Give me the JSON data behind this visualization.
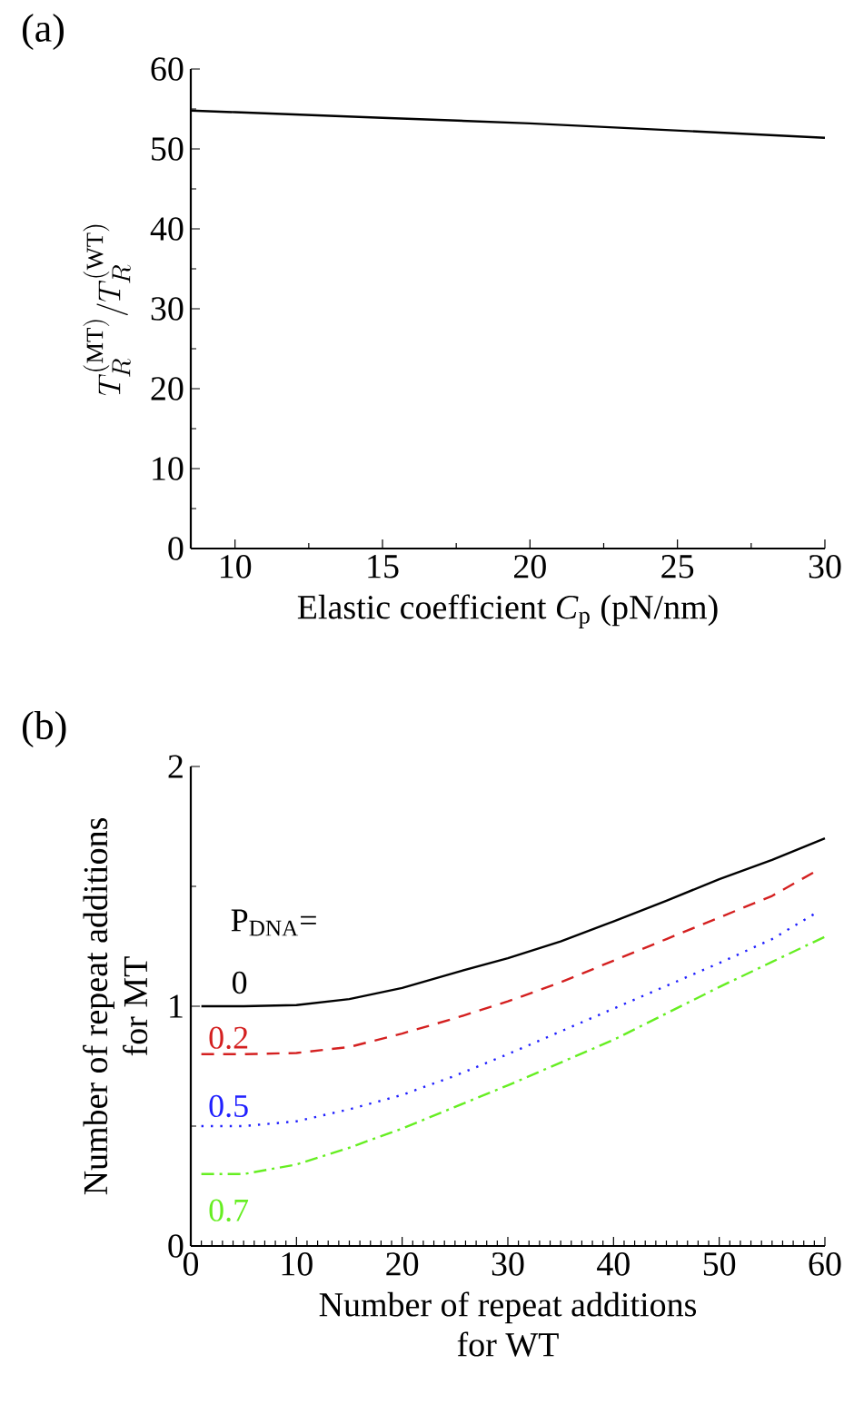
{
  "chart_data": [
    {
      "type": "line",
      "title": "(a)",
      "xlabel": "Elastic coefficient *C*$_{p}$ (pN/nm)",
      "ylabel": "T_R^{(\\mathrm{MT})}/T_R^{(\\mathrm{WT})}",
      "x": [
        8.5,
        10,
        15,
        20,
        25,
        30
      ],
      "series": [
        {
          "color": "#000000",
          "values": [
            54.8,
            54.6,
            53.9,
            53.2,
            52.3,
            51.4
          ]
        }
      ],
      "xlim": [
        8.5,
        30
      ],
      "xticks": [
        10,
        15,
        20,
        25,
        30
      ],
      "ylim": [
        0,
        60
      ],
      "yticks": [
        0,
        10,
        20,
        30,
        40,
        50,
        60
      ],
      "line_style": "solid"
    },
    {
      "type": "line",
      "title": "(b)",
      "xlabel": "Number of repeat additions\nfor WT",
      "ylabel": "Number of repeat additions\nfor MT",
      "legend_title": "P$_{DNA}$=",
      "x": [
        1,
        5,
        10,
        15,
        20,
        25,
        30,
        35,
        40,
        45,
        50,
        55,
        60
      ],
      "series": [
        {
          "name": "0",
          "color": "#000000",
          "line_style": "solid",
          "values": [
            1.0,
            1.0,
            1.005,
            1.03,
            1.076,
            1.14,
            1.2,
            1.27,
            1.354,
            1.44,
            1.53,
            1.61,
            1.7
          ]
        },
        {
          "name": "0.2",
          "color": "#d42020",
          "line_style": "dashed",
          "x": [
            1,
            5,
            10,
            15,
            20,
            25,
            30,
            35,
            40,
            45,
            50,
            55,
            59
          ],
          "values": [
            0.8,
            0.8,
            0.805,
            0.83,
            0.886,
            0.95,
            1.02,
            1.1,
            1.19,
            1.28,
            1.37,
            1.46,
            1.56
          ]
        },
        {
          "name": "0.5",
          "color": "#2020ff",
          "line_style": "dotted",
          "x": [
            1,
            5,
            10,
            15,
            20,
            25,
            30,
            35,
            40,
            45,
            50,
            55,
            59
          ],
          "values": [
            0.5,
            0.5,
            0.52,
            0.57,
            0.63,
            0.71,
            0.8,
            0.895,
            0.99,
            1.085,
            1.18,
            1.28,
            1.385
          ]
        },
        {
          "name": "0.7",
          "color": "#66ee22",
          "line_style": "dashdot",
          "values": [
            0.3,
            0.3,
            0.34,
            0.41,
            0.49,
            0.58,
            0.67,
            0.765,
            0.86,
            0.97,
            1.08,
            1.185,
            1.29
          ]
        }
      ],
      "xlim": [
        0,
        60
      ],
      "xticks": [
        0,
        10,
        20,
        30,
        40,
        50,
        60
      ],
      "ylim": [
        0,
        2
      ],
      "yticks": [
        0,
        1,
        2
      ]
    }
  ]
}
